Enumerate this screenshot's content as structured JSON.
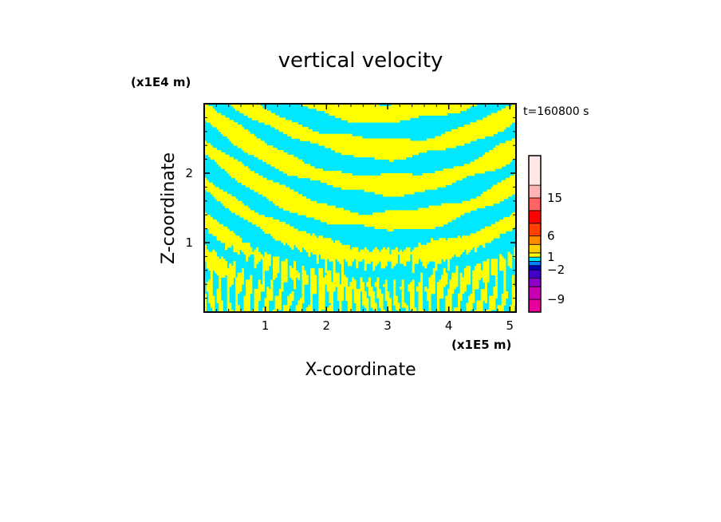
{
  "chart_data": {
    "type": "heatmap",
    "title": "vertical velocity",
    "xlabel": "X-coordinate",
    "ylabel": "Z-coordinate",
    "x_unit_label": "(x1E5 m)",
    "y_unit_label": "(x1E4 m)",
    "time_label": "t=160800 s",
    "xlim": [
      0,
      5.1
    ],
    "ylim": [
      0,
      3.0
    ],
    "x_ticks": [
      1,
      2,
      3,
      4,
      5
    ],
    "y_ticks": [
      1,
      2
    ],
    "x_tick_labels": [
      "1",
      "2",
      "3",
      "4",
      "5"
    ],
    "y_tick_labels": [
      "1",
      "2"
    ],
    "field_colors": {
      "positive": "#ffff00",
      "negative": "#00e8ff"
    },
    "colorbar": {
      "levels": [
        -12,
        -9,
        -6,
        -4,
        -2,
        -1,
        0,
        1,
        2,
        4,
        6,
        9,
        12,
        15,
        18,
        25
      ],
      "colors": [
        "#e8009c",
        "#c800b4",
        "#8c00c8",
        "#4000c8",
        "#0000b4",
        "#0080ff",
        "#00e8ff",
        "#ffff00",
        "#ffd000",
        "#ff8c00",
        "#ff4000",
        "#ff0000",
        "#ff6464",
        "#ffb4b4",
        "#ffe6e6"
      ],
      "tick_values": [
        15,
        6,
        1,
        -2,
        -9
      ],
      "tick_labels": [
        "15",
        "6",
        "1",
        "−2",
        "−9"
      ]
    }
  }
}
